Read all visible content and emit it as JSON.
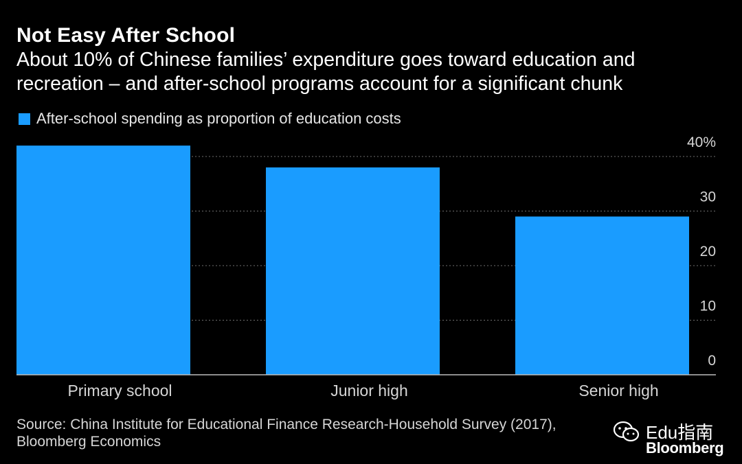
{
  "title": "Not Easy After School",
  "subtitle": "About 10% of Chinese families’ expenditure goes toward education and recreation – and after-school programs account for a significant chunk",
  "source": "Source: China Institute for Educational Finance Research-Household Survey (2017), Bloomberg Economics",
  "watermark": {
    "text": "Edu指南",
    "icon": "wechat-icon"
  },
  "brand": "Bloomberg",
  "colors": {
    "background": "#000000",
    "bar": "#1a9cff",
    "gridline": "#6f6f6f",
    "text": "#ffffff"
  },
  "chart_data": {
    "type": "bar",
    "title": "Not Easy After School",
    "categories": [
      "Primary school",
      "Junior high",
      "Senior high"
    ],
    "series": [
      {
        "name": "After-school spending as proportion of education costs",
        "values": [
          42,
          38,
          29
        ]
      }
    ],
    "y_ticks": [
      "0",
      "10",
      "20",
      "30",
      "40%"
    ],
    "ylim": [
      0,
      40
    ],
    "grid": true,
    "legend": "top-left",
    "y_axis_side": "right"
  }
}
